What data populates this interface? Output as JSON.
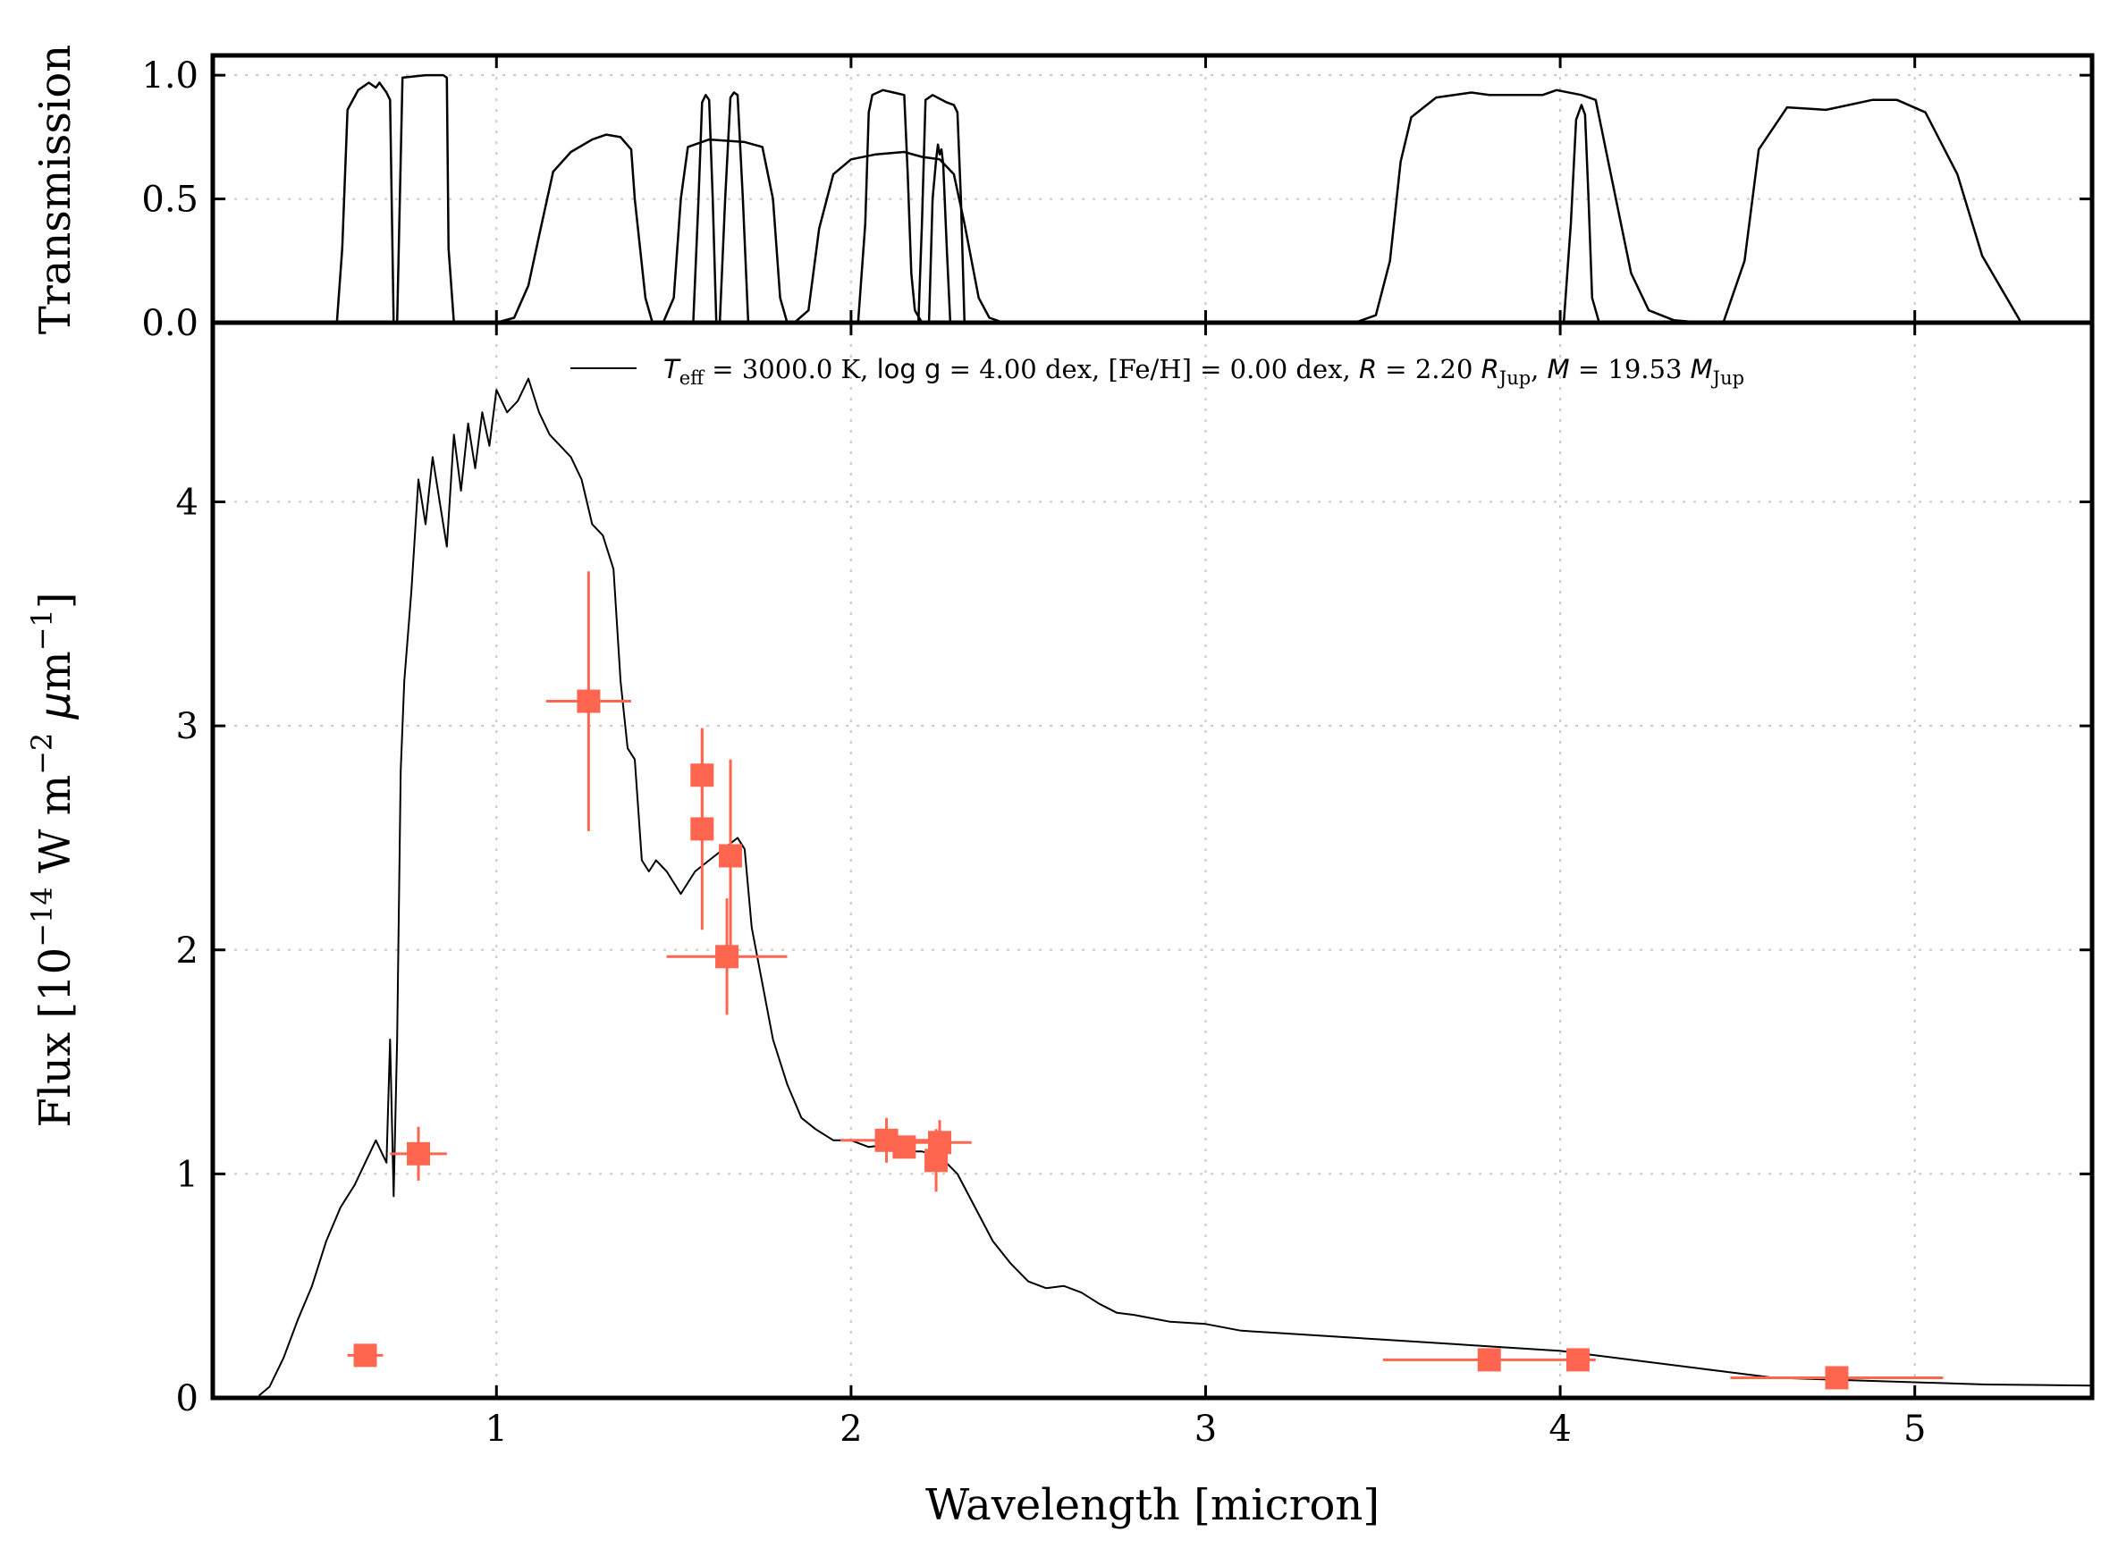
{
  "colors": {
    "data_points": "#ff6650",
    "model": "#000000",
    "frame": "#000000",
    "grid": "#c8c8c8"
  },
  "chart_data": [
    {
      "id": "transmission-panel",
      "type": "line",
      "ylabel": "Transmission",
      "ylim": [
        0,
        1.08
      ],
      "xlim": [
        0.2,
        5.5
      ],
      "yticks": [
        0.0,
        0.5,
        1.0
      ],
      "ytick_labels": [
        "0.0",
        "0.5",
        "1.0"
      ],
      "grid": true,
      "series": [
        {
          "x": [
            0.55,
            0.565,
            0.58,
            0.61,
            0.64,
            0.66,
            0.67,
            0.69,
            0.7,
            0.71
          ],
          "y": [
            0,
            0.3,
            0.86,
            0.94,
            0.97,
            0.95,
            0.97,
            0.93,
            0.9,
            0
          ]
        },
        {
          "x": [
            0.72,
            0.735,
            0.8,
            0.85,
            0.86,
            0.865,
            0.88
          ],
          "y": [
            0,
            0.99,
            1.0,
            1.0,
            0.99,
            0.3,
            0
          ]
        },
        {
          "x": [
            1.0,
            1.05,
            1.09,
            1.12,
            1.16,
            1.21,
            1.27,
            1.31,
            1.35,
            1.38,
            1.39,
            1.42,
            1.44
          ],
          "y": [
            0,
            0.02,
            0.15,
            0.35,
            0.61,
            0.69,
            0.74,
            0.76,
            0.75,
            0.7,
            0.5,
            0.1,
            0
          ]
        },
        {
          "x": [
            1.47,
            1.5,
            1.52,
            1.54,
            1.6,
            1.7,
            1.75,
            1.78,
            1.8,
            1.82
          ],
          "y": [
            0,
            0.1,
            0.5,
            0.71,
            0.74,
            0.73,
            0.71,
            0.5,
            0.1,
            0
          ]
        },
        {
          "x": [
            1.555,
            1.57,
            1.58,
            1.59,
            1.6,
            1.61,
            1.62
          ],
          "y": [
            0,
            0.5,
            0.89,
            0.92,
            0.9,
            0.5,
            0
          ]
        },
        {
          "x": [
            1.63,
            1.645,
            1.66,
            1.67,
            1.68,
            1.695,
            1.71
          ],
          "y": [
            0,
            0.5,
            0.91,
            0.93,
            0.92,
            0.5,
            0
          ]
        },
        {
          "x": [
            1.84,
            1.88,
            1.91,
            1.95,
            2.0,
            2.07,
            2.15,
            2.2,
            2.25,
            2.29,
            2.32,
            2.36,
            2.39,
            2.43
          ],
          "y": [
            0,
            0.05,
            0.38,
            0.6,
            0.66,
            0.68,
            0.69,
            0.67,
            0.66,
            0.6,
            0.4,
            0.1,
            0.02,
            0
          ]
        },
        {
          "x": [
            2.02,
            2.04,
            2.05,
            2.06,
            2.09,
            2.12,
            2.15,
            2.16,
            2.17,
            2.18,
            2.2
          ],
          "y": [
            0,
            0.4,
            0.85,
            0.92,
            0.94,
            0.93,
            0.92,
            0.6,
            0.2,
            0.05,
            0
          ]
        },
        {
          "x": [
            2.19,
            2.2,
            2.21,
            2.23,
            2.27,
            2.29,
            2.3,
            2.31,
            2.32
          ],
          "y": [
            0,
            0.4,
            0.9,
            0.92,
            0.89,
            0.88,
            0.85,
            0.5,
            0
          ]
        },
        {
          "x": [
            2.22,
            2.23,
            2.24,
            2.245,
            2.25,
            2.255,
            2.26,
            2.27,
            2.28
          ],
          "y": [
            0,
            0.5,
            0.66,
            0.72,
            0.68,
            0.7,
            0.64,
            0.3,
            0
          ]
        },
        {
          "x": [
            3.42,
            3.48,
            3.52,
            3.55,
            3.58,
            3.65,
            3.75,
            3.8,
            3.95,
            3.99,
            4.06,
            4.1,
            4.14,
            4.2,
            4.25,
            4.32,
            4.4
          ],
          "y": [
            0,
            0.03,
            0.25,
            0.65,
            0.83,
            0.91,
            0.93,
            0.92,
            0.92,
            0.94,
            0.92,
            0.9,
            0.62,
            0.2,
            0.05,
            0.01,
            0
          ]
        },
        {
          "x": [
            4.01,
            4.03,
            4.045,
            4.06,
            4.07,
            4.08,
            4.09,
            4.11
          ],
          "y": [
            0,
            0.4,
            0.82,
            0.88,
            0.84,
            0.5,
            0.1,
            0
          ]
        },
        {
          "x": [
            4.46,
            4.52,
            4.56,
            4.64,
            4.75,
            4.88,
            4.95,
            5.03,
            5.12,
            5.19,
            5.3
          ],
          "y": [
            0,
            0.25,
            0.7,
            0.87,
            0.86,
            0.9,
            0.9,
            0.85,
            0.6,
            0.27,
            0
          ]
        }
      ]
    },
    {
      "id": "flux-panel",
      "type": "scatter",
      "xlabel": "Wavelength [micron]",
      "ylabel_parts": {
        "main": "Flux [10",
        "exp1": "−14",
        "mid": " W m",
        "exp2": "−2",
        "mu": " μ",
        "m": "m",
        "exp3": "−1",
        "end": "]"
      },
      "xlim": [
        0.2,
        5.5
      ],
      "ylim": [
        0,
        4.8
      ],
      "xticks": [
        1,
        2,
        3,
        4,
        5
      ],
      "xtick_labels": [
        "1",
        "2",
        "3",
        "4",
        "5"
      ],
      "yticks": [
        0,
        1,
        2,
        3,
        4
      ],
      "ytick_labels": [
        "0",
        "1",
        "2",
        "3",
        "4"
      ],
      "grid": true,
      "legend_placement": "top-right",
      "model": {
        "legend": {
          "teff_sym": "T",
          "teff_sub": "eff",
          "teff_val": " = 3000.0 K, ",
          "logg_sym": "log g",
          "logg_val": " = 4.00 dex, [Fe/H] = 0.00 dex, ",
          "r_sym": "R",
          "r_val": " = 2.20 ",
          "r_unit_sym": "R",
          "r_unit_sub": "Jup",
          "m_sep": ", ",
          "m_sym": "M",
          "m_val": " = 19.53 ",
          "m_unit_sym": "M",
          "m_unit_sub": "Jup"
        },
        "x": [
          0.33,
          0.36,
          0.4,
          0.44,
          0.48,
          0.52,
          0.56,
          0.6,
          0.63,
          0.66,
          0.69,
          0.7,
          0.71,
          0.72,
          0.73,
          0.74,
          0.76,
          0.78,
          0.8,
          0.82,
          0.84,
          0.86,
          0.88,
          0.9,
          0.92,
          0.94,
          0.96,
          0.98,
          1.0,
          1.03,
          1.06,
          1.09,
          1.12,
          1.15,
          1.18,
          1.21,
          1.24,
          1.27,
          1.3,
          1.33,
          1.35,
          1.37,
          1.39,
          1.41,
          1.43,
          1.45,
          1.48,
          1.52,
          1.56,
          1.6,
          1.64,
          1.68,
          1.7,
          1.72,
          1.75,
          1.78,
          1.82,
          1.86,
          1.9,
          1.95,
          2.0,
          2.05,
          2.1,
          2.15,
          2.2,
          2.25,
          2.3,
          2.35,
          2.4,
          2.45,
          2.5,
          2.55,
          2.6,
          2.65,
          2.7,
          2.75,
          2.8,
          2.9,
          3.0,
          3.1,
          3.2,
          3.3,
          3.4,
          3.5,
          3.6,
          3.7,
          3.8,
          3.9,
          4.0,
          4.1,
          4.2,
          4.3,
          4.4,
          4.5,
          4.6,
          4.8,
          5.0,
          5.2,
          5.5
        ],
        "y": [
          0.01,
          0.05,
          0.18,
          0.35,
          0.5,
          0.7,
          0.85,
          0.95,
          1.05,
          1.15,
          1.05,
          1.6,
          0.9,
          1.6,
          2.8,
          3.2,
          3.6,
          4.1,
          3.9,
          4.2,
          4.0,
          3.8,
          4.3,
          4.05,
          4.35,
          4.15,
          4.4,
          4.25,
          4.5,
          4.4,
          4.45,
          4.55,
          4.4,
          4.3,
          4.25,
          4.2,
          4.1,
          3.9,
          3.85,
          3.7,
          3.2,
          2.9,
          2.85,
          2.4,
          2.35,
          2.4,
          2.35,
          2.25,
          2.35,
          2.4,
          2.45,
          2.5,
          2.45,
          2.1,
          1.85,
          1.6,
          1.4,
          1.25,
          1.2,
          1.15,
          1.15,
          1.12,
          1.13,
          1.1,
          1.1,
          1.08,
          1.0,
          0.85,
          0.7,
          0.6,
          0.52,
          0.49,
          0.5,
          0.47,
          0.42,
          0.38,
          0.37,
          0.34,
          0.33,
          0.3,
          0.29,
          0.28,
          0.27,
          0.26,
          0.25,
          0.24,
          0.23,
          0.22,
          0.21,
          0.19,
          0.17,
          0.15,
          0.13,
          0.11,
          0.09,
          0.08,
          0.07,
          0.06,
          0.055
        ]
      },
      "photometry": [
        {
          "x": 0.63,
          "y": 0.19,
          "xerr": 0.05,
          "yerr": 0.03
        },
        {
          "x": 0.78,
          "y": 1.09,
          "xerr": 0.08,
          "yerr": 0.12
        },
        {
          "x": 1.26,
          "y": 3.11,
          "xerr": 0.12,
          "yerr": 0.58
        },
        {
          "x": 1.58,
          "y": 2.78,
          "xerr": 0.01,
          "yerr": 0.2
        },
        {
          "x": 1.58,
          "y": 2.54,
          "xerr": 0.01,
          "yerr": 0.45
        },
        {
          "x": 1.66,
          "y": 2.42,
          "xerr": 0.01,
          "yerr": 0.43
        },
        {
          "x": 1.65,
          "y": 1.97,
          "xerr": 0.17,
          "yerr": 0.26
        },
        {
          "x": 2.1,
          "y": 1.15,
          "xerr": 0.13,
          "yerr": 0.1
        },
        {
          "x": 2.15,
          "y": 1.12,
          "xerr": 0.02,
          "yerr": 0.05
        },
        {
          "x": 2.24,
          "y": 1.06,
          "xerr": 0.02,
          "yerr": 0.14
        },
        {
          "x": 2.25,
          "y": 1.14,
          "xerr": 0.09,
          "yerr": 0.1
        },
        {
          "x": 3.8,
          "y": 0.17,
          "xerr": 0.3,
          "yerr": 0.02
        },
        {
          "x": 4.05,
          "y": 0.17,
          "xerr": 0.02,
          "yerr": 0.02
        },
        {
          "x": 4.78,
          "y": 0.09,
          "xerr": 0.3,
          "yerr": 0.01
        }
      ]
    }
  ]
}
